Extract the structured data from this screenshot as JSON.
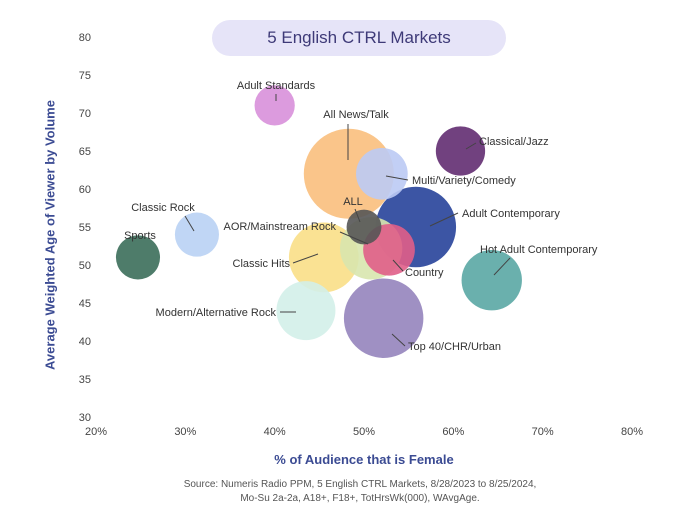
{
  "chart_data": {
    "type": "scatter",
    "title": "5 English CTRL Markets",
    "xlabel": "% of Audience that is Female",
    "ylabel": "Average Weighted Age of Viewer by Volume",
    "xlim": [
      20,
      80
    ],
    "ylim": [
      30,
      80
    ],
    "x_ticks": [
      "20%",
      "30%",
      "40%",
      "50%",
      "60%",
      "70%",
      "80%"
    ],
    "x_tick_values": [
      20,
      30,
      40,
      50,
      60,
      70,
      80
    ],
    "y_ticks": [
      "30",
      "35",
      "40",
      "45",
      "50",
      "55",
      "60",
      "65",
      "70",
      "75",
      "80"
    ],
    "y_tick_values": [
      30,
      35,
      40,
      45,
      50,
      55,
      60,
      65,
      70,
      75,
      80
    ],
    "grid": false,
    "bubble_size_encodes": "audience volume (relative)",
    "points": [
      {
        "label": "All News/Talk",
        "x": 48.3,
        "y": 62.0,
        "size": 1.0,
        "color": "#f9bf7d"
      },
      {
        "label": "Adult Contemporary",
        "x": 55.8,
        "y": 55.0,
        "size": 0.8,
        "color": "#27439a"
      },
      {
        "label": "Top 40/CHR/Urban",
        "x": 52.2,
        "y": 43.0,
        "size": 0.78,
        "color": "#9584bd"
      },
      {
        "label": "Classic Hits",
        "x": 45.5,
        "y": 51.0,
        "size": 0.6,
        "color": "#fadf87"
      },
      {
        "label": "AOR/Mainstream Rock",
        "x": 50.8,
        "y": 52.2,
        "size": 0.48,
        "color": "#d8e6ae"
      },
      {
        "label": "Hot Adult Contemporary",
        "x": 64.3,
        "y": 48.0,
        "size": 0.45,
        "color": "#5aa7a4"
      },
      {
        "label": "Modern/Alternative Rock",
        "x": 43.5,
        "y": 44.0,
        "size": 0.43,
        "color": "#d3efe9"
      },
      {
        "label": "Multi/Variety/Comedy",
        "x": 52.0,
        "y": 62.0,
        "size": 0.33,
        "color": "#bbcaf4"
      },
      {
        "label": "Country",
        "x": 52.8,
        "y": 52.0,
        "size": 0.33,
        "color": "#e05e88"
      },
      {
        "label": "Classical/Jazz",
        "x": 60.8,
        "y": 65.0,
        "size": 0.3,
        "color": "#622c71"
      },
      {
        "label": "Classic Rock",
        "x": 31.3,
        "y": 54.0,
        "size": 0.24,
        "color": "#b9d1f4"
      },
      {
        "label": "Sports",
        "x": 24.7,
        "y": 51.0,
        "size": 0.24,
        "color": "#3b6e5a"
      },
      {
        "label": "Adult Standards",
        "x": 40.0,
        "y": 71.0,
        "size": 0.2,
        "color": "#d890da"
      },
      {
        "label": "ALL",
        "x": 50.0,
        "y": 55.0,
        "size": 0.15,
        "color": "#555555"
      }
    ],
    "source": "Source: Numeris Radio PPM, 5 English CTRL Markets, 8/28/2023 to 8/25/2024, Mo-Su 2a-2a, A18+, F18+, TotHrsWk(000), WAvgAge."
  },
  "source_lines": [
    "Source: Numeris Radio PPM, 5 English CTRL Markets, 8/28/2023 to 8/25/2024,",
    "Mo-Su 2a-2a, A18+, F18+, TotHrsWk(000), WAvgAge."
  ],
  "colors": {
    "title_pill_bg": "#e6e4f8",
    "title_text": "#3e3a78",
    "axis_title": "#3b4b93",
    "tick_text": "#444444"
  }
}
